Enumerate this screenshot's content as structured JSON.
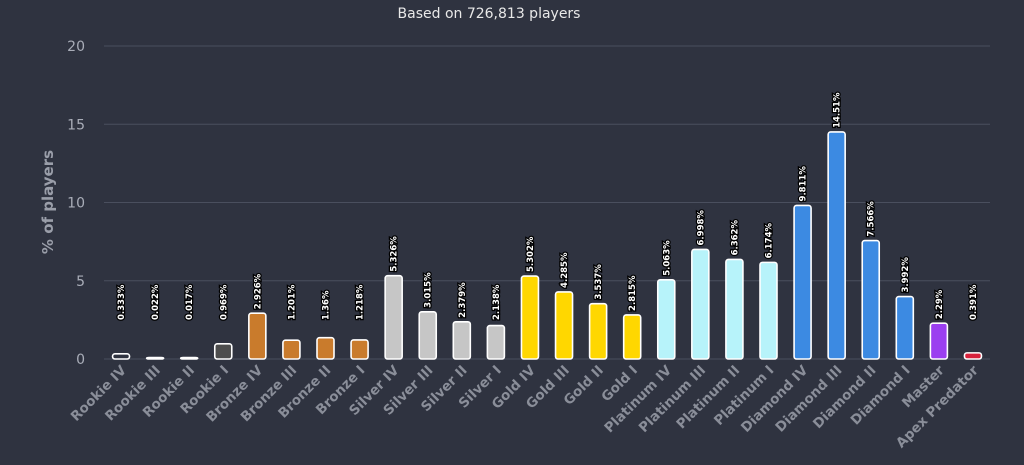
{
  "chart_data": {
    "type": "bar",
    "subtitle": "Based on 726,813 players",
    "title": "",
    "ylabel": "% of players",
    "xlabel": "",
    "ylim": [
      0,
      20
    ],
    "yticks": [
      0,
      5,
      10,
      15,
      20
    ],
    "grid": true,
    "categories": [
      "Rookie IV",
      "Rookie III",
      "Rookie II",
      "Rookie I",
      "Bronze IV",
      "Bronze III",
      "Bronze II",
      "Bronze I",
      "Silver IV",
      "Silver III",
      "Silver II",
      "Silver I",
      "Gold IV",
      "Gold III",
      "Gold II",
      "Gold I",
      "Platinum IV",
      "Platinum III",
      "Platinum II",
      "Platinum I",
      "Diamond IV",
      "Diamond III",
      "Diamond II",
      "Diamond I",
      "Master",
      "Apex Predator"
    ],
    "values": [
      0.333,
      0.022,
      0.017,
      0.969,
      2.926,
      1.201,
      1.36,
      1.218,
      5.326,
      3.015,
      2.379,
      2.138,
      5.302,
      4.285,
      3.537,
      2.815,
      5.063,
      6.998,
      6.362,
      6.174,
      9.811,
      14.51,
      7.566,
      3.992,
      2.29,
      0.391
    ],
    "labels": [
      "0.333%",
      "0.022%",
      "0.017%",
      "0.969%",
      "2.926%",
      "1.201%",
      "1.36%",
      "1.218%",
      "5.326%",
      "3.015%",
      "2.379%",
      "2.138%",
      "5.302%",
      "4.285%",
      "3.537%",
      "2.815%",
      "5.063%",
      "6.998%",
      "6.362%",
      "6.174%",
      "9.811%",
      "14.51%",
      "7.566%",
      "3.992%",
      "2.29%",
      "0.391%"
    ],
    "colors": [
      "#2f3340",
      "#2f3340",
      "#2f3340",
      "#4d4d4d",
      "#c97b2c",
      "#c97b2c",
      "#c97b2c",
      "#c97b2c",
      "#c6c6c6",
      "#c6c6c6",
      "#c6c6c6",
      "#c6c6c6",
      "#ffd700",
      "#ffd700",
      "#ffd700",
      "#ffd700",
      "#b7f3fa",
      "#b7f3fa",
      "#b7f3fa",
      "#b7f3fa",
      "#3c8ae2",
      "#3c8ae2",
      "#3c8ae2",
      "#3c8ae2",
      "#9b3ff0",
      "#d8223c"
    ]
  }
}
